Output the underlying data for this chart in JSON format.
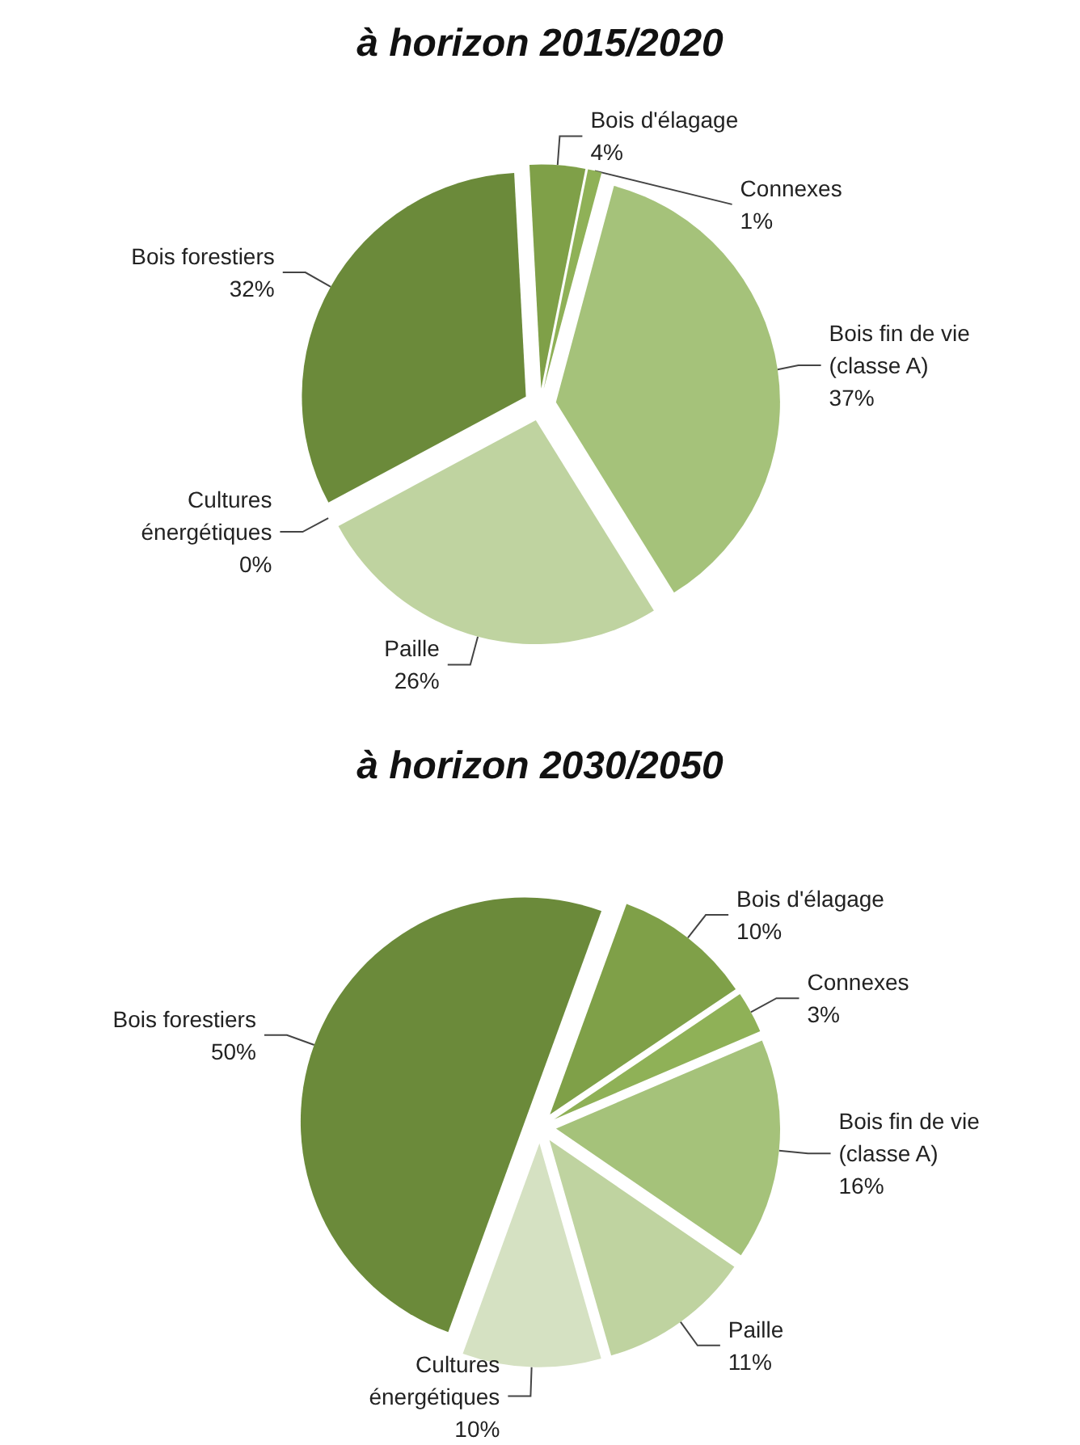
{
  "chart_data": [
    {
      "type": "pie",
      "title": "à horizon 2015/2020",
      "categories": [
        "Bois fin de vie\n(classe A)",
        "Paille",
        "Cultures\nénergétiques",
        "Bois forestiers",
        "Bois d'élagage",
        "Connexes"
      ],
      "values": [
        37,
        26,
        0,
        32,
        4,
        1
      ],
      "value_labels": [
        "37%",
        "26%",
        "0%",
        "32%",
        "4%",
        "1%"
      ],
      "colors": [
        "#a5c27a",
        "#bfd3a0",
        "#d5e1c2",
        "#6b8a3a",
        "#7fa048",
        "#8fb157"
      ]
    },
    {
      "type": "pie",
      "title": "à horizon 2030/2050",
      "categories": [
        "Bois d'élagage",
        "Connexes",
        "Bois fin de vie\n(classe A)",
        "Paille",
        "Cultures\nénergétiques",
        "Bois forestiers"
      ],
      "values": [
        10,
        3,
        16,
        11,
        10,
        50
      ],
      "value_labels": [
        "10%",
        "3%",
        "16%",
        "11%",
        "10%",
        "50%"
      ],
      "colors": [
        "#7fa048",
        "#8fb157",
        "#a5c27a",
        "#bfd3a0",
        "#d5e1c2",
        "#6b8a3a"
      ]
    }
  ]
}
